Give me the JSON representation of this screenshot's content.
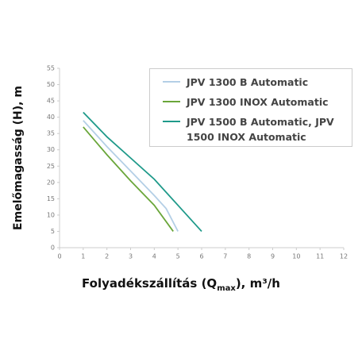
{
  "chart_data": {
    "type": "line",
    "x_label": {
      "main": "Folyadékszállítás (Q",
      "sub": "max",
      "end": "), m³/h"
    },
    "y_label": "Emelőmagasság (H), m",
    "xlim": [
      0,
      12
    ],
    "xticks": [
      0,
      1,
      2,
      3,
      4,
      5,
      6,
      7,
      8,
      9,
      10,
      11,
      12
    ],
    "ylim": [
      0,
      55
    ],
    "yticks": [
      0,
      5,
      10,
      15,
      20,
      25,
      30,
      35,
      40,
      45,
      50,
      55
    ],
    "grid": false,
    "legend": "upper right",
    "series": [
      {
        "name": "JPV 1300 B Automatic",
        "color": "#b4cfe6",
        "x": [
          1,
          2,
          3,
          4,
          4.5,
          5
        ],
        "values": [
          39,
          31,
          23.5,
          16,
          12,
          5
        ]
      },
      {
        "name": "JPV 1300 INOX Automatic",
        "color": "#6aa63a",
        "x": [
          1,
          2,
          3,
          4,
          4.8
        ],
        "values": [
          37,
          28.5,
          20.5,
          13,
          5
        ]
      },
      {
        "name": "JPV 1500 B Automatic, JPV 1500 INOX Automatic",
        "color": "#1f9a8a",
        "x": [
          1,
          2,
          3,
          4,
          5,
          6
        ],
        "values": [
          41.5,
          34,
          27.5,
          21,
          13,
          5
        ]
      }
    ]
  }
}
